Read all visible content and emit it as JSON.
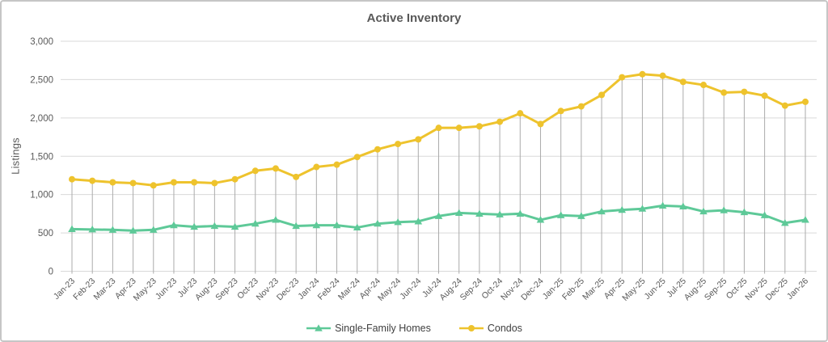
{
  "chart_data": {
    "type": "line",
    "title": "Active Inventory",
    "ylabel": "Listings",
    "xlabel": "",
    "ylim": [
      0,
      3000
    ],
    "ytick_step": 500,
    "grid": true,
    "drop_lines": true,
    "legend_position": "bottom",
    "categories": [
      "Jan-23",
      "Feb-23",
      "Mar-23",
      "Apr-23",
      "May-23",
      "Jun-23",
      "Jul-23",
      "Aug-23",
      "Sep-23",
      "Oct-23",
      "Nov-23",
      "Dec-23",
      "Jan-24",
      "Feb-24",
      "Mar-24",
      "Apr-24",
      "May-24",
      "Jun-24",
      "Jul-24",
      "Aug-24",
      "Sep-24",
      "Oct-24",
      "Nov-24",
      "Dec-24",
      "Jan-25",
      "Feb-25",
      "Mar-25",
      "Apr-25",
      "May-25",
      "Jun-25",
      "Jul-25",
      "Aug-25",
      "Sep-25",
      "Oct-25",
      "Nov-25",
      "Dec-25",
      "Jan-26"
    ],
    "series": [
      {
        "name": "Single-Family Homes",
        "color": "#5EC998",
        "marker": "triangle",
        "values": [
          550,
          545,
          540,
          530,
          540,
          600,
          580,
          590,
          580,
          620,
          670,
          590,
          600,
          600,
          570,
          620,
          640,
          650,
          720,
          760,
          750,
          740,
          750,
          670,
          730,
          720,
          780,
          800,
          815,
          855,
          845,
          780,
          795,
          770,
          730,
          630,
          670
        ]
      },
      {
        "name": "Condos",
        "color": "#EEC32D",
        "marker": "circle",
        "values": [
          1200,
          1180,
          1160,
          1150,
          1120,
          1160,
          1160,
          1150,
          1200,
          1310,
          1340,
          1230,
          1360,
          1390,
          1490,
          1590,
          1660,
          1720,
          1870,
          1870,
          1890,
          1950,
          2060,
          1920,
          2090,
          2150,
          2300,
          2530,
          2570,
          2550,
          2470,
          2430,
          2330,
          2340,
          2290,
          2160,
          2210
        ]
      }
    ]
  },
  "colors": {
    "grid": "#D9D9D9",
    "drop_line": "#ABABAB",
    "axis_text": "#595959",
    "title_text": "#595959",
    "border": "#C6C6C6",
    "legend_text": "#404040"
  }
}
